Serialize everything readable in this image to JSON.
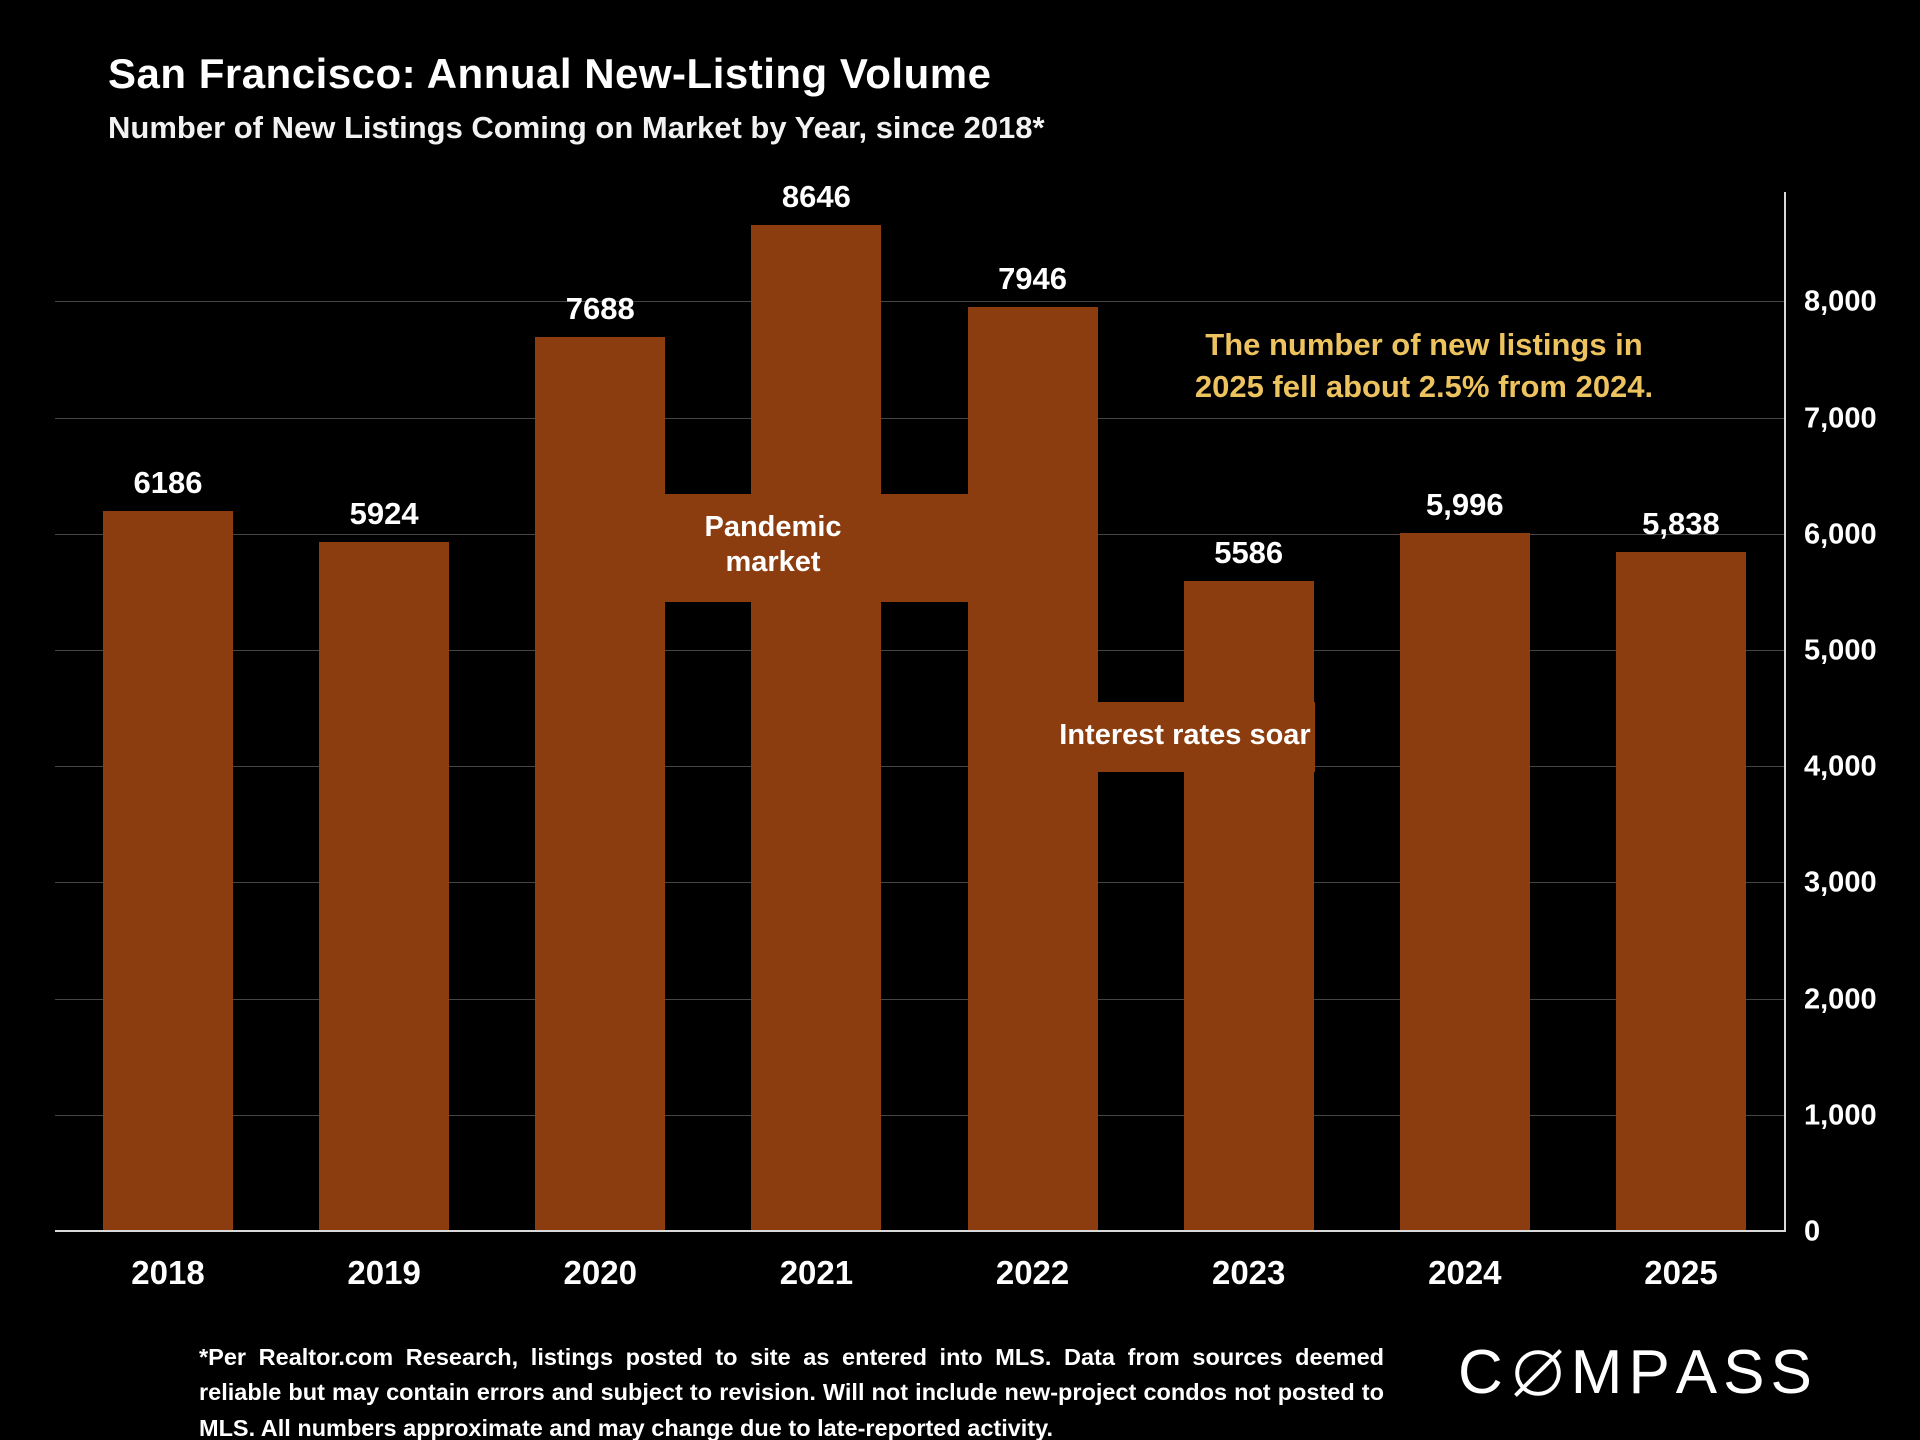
{
  "header": {
    "title": "San Francisco: Annual New-Listing Volume",
    "subtitle": "Number of New Listings Coming on Market by Year, since 2018*"
  },
  "chart_data": {
    "type": "bar",
    "title": "San Francisco: Annual New-Listing Volume",
    "subtitle": "Number of New Listings Coming on Market by Year, since 2018*",
    "categories": [
      "2018",
      "2019",
      "2020",
      "2021",
      "2022",
      "2023",
      "2024",
      "2025"
    ],
    "values": [
      6186,
      5924,
      7688,
      8646,
      7946,
      5586,
      5996,
      5838
    ],
    "value_labels": [
      "6186",
      "5924",
      "7688",
      "8646",
      "7946",
      "5586",
      "5,996",
      "5,838"
    ],
    "xlabel": "",
    "ylabel": "",
    "ylim": [
      0,
      8950
    ],
    "grid": true,
    "legend": "none",
    "yticks": [
      {
        "value": 0,
        "label": "0"
      },
      {
        "value": 1000,
        "label": "1,000"
      },
      {
        "value": 2000,
        "label": "2,000"
      },
      {
        "value": 3000,
        "label": "3,000"
      },
      {
        "value": 4000,
        "label": "4,000"
      },
      {
        "value": 5000,
        "label": "5,000"
      },
      {
        "value": 6000,
        "label": "6,000"
      },
      {
        "value": 7000,
        "label": "7,000"
      },
      {
        "value": 8000,
        "label": "8,000"
      }
    ],
    "colors": {
      "bar": "#8C3D0F",
      "background": "#000000",
      "gridline": "#454545",
      "axis": "#d9d9d9",
      "text": "#ffffff",
      "note": "#EDC35F"
    },
    "annotations": [
      {
        "id": "pandemic",
        "lines": [
          "Pandemic",
          "market"
        ],
        "color": "#ffffff",
        "boxed": true
      },
      {
        "id": "interest-rates",
        "lines": [
          "Interest rates soar"
        ],
        "color": "#ffffff",
        "boxed": true
      },
      {
        "id": "note-2025",
        "lines": [
          "The number of new listings in",
          "2025 fell about 2.5% from 2024."
        ],
        "color": "#EDC35F",
        "boxed": false
      }
    ]
  },
  "footnote": {
    "text": "*Per Realtor.com Research, listings posted to site as entered into MLS. Data from sources deemed reliable but may contain errors and subject to revision. Will not include new-project condos not posted to MLS. All numbers approximate and may change due to late-reported activity."
  },
  "brand": {
    "name": "COMPASS"
  }
}
